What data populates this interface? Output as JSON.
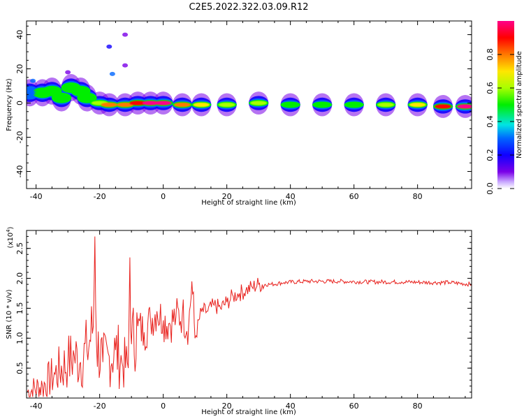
{
  "title": "C2E5.2022.322.03.09.R12",
  "colors": {
    "snr_line": "#e8201c",
    "frame": "#000000"
  },
  "chart_data": [
    {
      "type": "heatmap",
      "xlabel": "Height of straight line (km)",
      "ylabel": "Frequency (Hz)",
      "xlim": [
        -43,
        97
      ],
      "ylim": [
        -50,
        48
      ],
      "x_ticks": [
        -40,
        -20,
        0,
        20,
        40,
        60,
        80
      ],
      "x_tick_labels": [
        "-40",
        "-20",
        "0",
        "20",
        "40",
        "60",
        "80"
      ],
      "y_ticks": [
        -40,
        -20,
        0,
        20,
        40
      ],
      "y_tick_labels": [
        "-40",
        "-20",
        "0",
        "20",
        "40"
      ],
      "colorbar": {
        "label": "Normalized spectral amplitude",
        "range": [
          0,
          1
        ],
        "ticks": [
          0.0,
          0.2,
          0.4,
          0.6,
          0.8
        ],
        "tick_labels": [
          "0.0",
          "0.2",
          "0.4",
          "0.6",
          "0.8"
        ],
        "colormap": "rainbow (purple-blue-cyan-green-yellow-red-magenta)"
      },
      "ridge": {
        "description": "dominant frequency band versus height",
        "points": [
          {
            "x": -42,
            "y": 6,
            "amp": 0.25
          },
          {
            "x": -38,
            "y": 6,
            "amp": 0.45
          },
          {
            "x": -35,
            "y": 7,
            "amp": 0.5
          },
          {
            "x": -32,
            "y": 3,
            "amp": 0.45
          },
          {
            "x": -29,
            "y": 9,
            "amp": 0.5
          },
          {
            "x": -26,
            "y": 7,
            "amp": 0.45
          },
          {
            "x": -24,
            "y": 3,
            "amp": 0.4
          },
          {
            "x": -20,
            "y": 0,
            "amp": 0.6
          },
          {
            "x": -17,
            "y": -1,
            "amp": 0.75
          },
          {
            "x": -12,
            "y": -1,
            "amp": 0.8
          },
          {
            "x": -8,
            "y": 0,
            "amp": 0.9
          },
          {
            "x": -4,
            "y": 0,
            "amp": 1.0
          },
          {
            "x": 0,
            "y": 0,
            "amp": 0.95
          },
          {
            "x": 6,
            "y": -1,
            "amp": 0.75
          },
          {
            "x": 12,
            "y": -1,
            "amp": 0.7
          },
          {
            "x": 20,
            "y": -1,
            "amp": 0.6
          },
          {
            "x": 30,
            "y": 0,
            "amp": 0.55
          },
          {
            "x": 40,
            "y": -1,
            "amp": 0.5
          },
          {
            "x": 50,
            "y": -1,
            "amp": 0.5
          },
          {
            "x": 60,
            "y": -1,
            "amp": 0.5
          },
          {
            "x": 70,
            "y": -1,
            "amp": 0.55
          },
          {
            "x": 80,
            "y": -1,
            "amp": 0.65
          },
          {
            "x": 88,
            "y": -2,
            "amp": 0.9
          },
          {
            "x": 95,
            "y": -2,
            "amp": 1.0
          }
        ]
      },
      "outliers": [
        {
          "x": -17,
          "y": 33,
          "amp": 0.2
        },
        {
          "x": -12,
          "y": 40,
          "amp": 0.1
        },
        {
          "x": -16,
          "y": 17,
          "amp": 0.25
        },
        {
          "x": -12,
          "y": 22,
          "amp": 0.1
        },
        {
          "x": -30,
          "y": 18,
          "amp": 0.1
        },
        {
          "x": -41,
          "y": 13,
          "amp": 0.3
        }
      ]
    },
    {
      "type": "line",
      "xlabel": "Height of straight line (km)",
      "ylabel": "SNR (10 * v/v)",
      "y_scale_label": "(x10",
      "y_scale_exponent": "4",
      "xlim": [
        -43,
        97
      ],
      "ylim": [
        0,
        2.8
      ],
      "x_ticks": [
        -40,
        -20,
        0,
        20,
        40,
        60,
        80
      ],
      "x_tick_labels": [
        "-40",
        "-20",
        "0",
        "20",
        "40",
        "60",
        "80"
      ],
      "y_ticks": [
        0.5,
        1.0,
        1.5,
        2.0,
        2.5
      ],
      "y_tick_labels": [
        "0.5",
        "1.0",
        "1.5",
        "2.0",
        "2.5"
      ],
      "series": [
        {
          "x": [
            -43,
            -38,
            -34,
            -30,
            -28,
            -26,
            -24,
            -22,
            -21.5,
            -21,
            -19,
            -17,
            -15,
            -13,
            -11,
            -10.5,
            -10,
            -8,
            -6,
            -4,
            -2,
            0,
            2,
            4,
            6,
            8,
            9,
            10,
            12,
            14,
            16,
            18,
            20,
            22,
            24,
            26,
            28,
            30,
            34,
            38,
            45,
            55,
            65,
            75,
            85,
            90,
            97
          ],
          "y": [
            0.1,
            0.2,
            0.4,
            0.6,
            0.7,
            0.6,
            0.8,
            1.2,
            2.7,
            0.9,
            0.6,
            0.7,
            0.8,
            0.6,
            0.5,
            2.35,
            0.9,
            1.2,
            1.1,
            1.3,
            1.45,
            1.3,
            1.25,
            1.35,
            1.4,
            1.2,
            1.95,
            1.0,
            1.45,
            1.45,
            1.55,
            1.5,
            1.6,
            1.7,
            1.75,
            1.8,
            1.85,
            1.9,
            1.9,
            1.93,
            1.95,
            1.95,
            1.94,
            1.94,
            1.93,
            1.93,
            1.9
          ]
        }
      ]
    }
  ]
}
